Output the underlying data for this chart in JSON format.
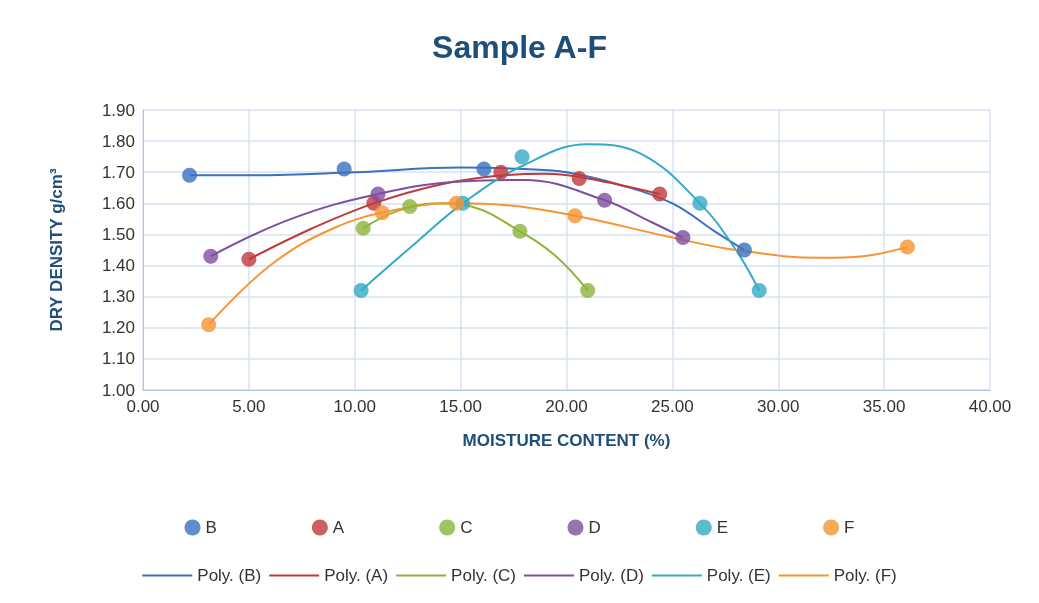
{
  "chart_data": {
    "type": "scatter",
    "title": "Sample A-F",
    "xlabel": "MOISTURE CONTENT (%)",
    "ylabel": "DRY DENSITY g/cm³",
    "marker": "circle",
    "grid": true,
    "legend": "bottom",
    "xlim": [
      0,
      40
    ],
    "xticks": [
      {
        "value": 0,
        "label": "0.00"
      },
      {
        "value": 5,
        "label": "5.00"
      },
      {
        "value": 10,
        "label": "10.00"
      },
      {
        "value": 15,
        "label": "15.00"
      },
      {
        "value": 20,
        "label": "20.00"
      },
      {
        "value": 25,
        "label": "25.00"
      },
      {
        "value": 30,
        "label": "30.00"
      },
      {
        "value": 35,
        "label": "35.00"
      },
      {
        "value": 40,
        "label": "40.00"
      }
    ],
    "ylim": [
      1,
      1.9
    ],
    "yticks": [
      {
        "value": 1,
        "label": "1.00"
      },
      {
        "value": 1.1,
        "label": "1.10"
      },
      {
        "value": 1.2,
        "label": "1.20"
      },
      {
        "value": 1.3,
        "label": "1.30"
      },
      {
        "value": 1.4,
        "label": "1.40"
      },
      {
        "value": 1.5,
        "label": "1.50"
      },
      {
        "value": 1.6,
        "label": "1.60"
      },
      {
        "value": 1.7,
        "label": "1.70"
      },
      {
        "value": 1.8,
        "label": "1.80"
      },
      {
        "value": 1.9,
        "label": "1.90"
      }
    ],
    "series": [
      {
        "name": "B",
        "color": "#3a70c0",
        "x": [
          2.2,
          9.5,
          16.1,
          28.4
        ],
        "values": [
          1.69,
          1.71,
          1.71,
          1.45
        ]
      },
      {
        "name": "A",
        "color": "#c0393b",
        "x": [
          5.0,
          10.9,
          16.9,
          20.6,
          24.4
        ],
        "values": [
          1.42,
          1.6,
          1.7,
          1.68,
          1.63
        ]
      },
      {
        "name": "C",
        "color": "#8cb43a",
        "x": [
          10.4,
          12.6,
          17.8,
          21.0
        ],
        "values": [
          1.52,
          1.59,
          1.51,
          1.32
        ]
      },
      {
        "name": "D",
        "color": "#7e4fa0",
        "x": [
          3.2,
          11.1,
          21.8,
          25.5
        ],
        "values": [
          1.43,
          1.63,
          1.61,
          1.49
        ]
      },
      {
        "name": "E",
        "color": "#35aac6",
        "x": [
          10.3,
          15.1,
          17.9,
          26.3,
          29.1
        ],
        "values": [
          1.32,
          1.6,
          1.75,
          1.6,
          1.32
        ]
      },
      {
        "name": "F",
        "color": "#f79431",
        "x": [
          3.1,
          11.3,
          14.8,
          20.4,
          36.1
        ],
        "values": [
          1.21,
          1.57,
          1.6,
          1.56,
          1.46
        ]
      },
      {
        "name": "Poly. (B)",
        "type": "line",
        "marker": "none",
        "color": "#3a70c0",
        "x": [
          2.2,
          5,
          10,
          15,
          18,
          20,
          22.5,
          25,
          27,
          28.4
        ],
        "values": [
          1.69,
          1.69,
          1.7,
          1.715,
          1.71,
          1.7,
          1.66,
          1.6,
          1.51,
          1.45
        ]
      },
      {
        "name": "Poly. (A)",
        "type": "line",
        "marker": "none",
        "color": "#c0393b",
        "x": [
          5,
          8,
          10.9,
          14,
          17,
          19,
          21,
          24.4
        ],
        "values": [
          1.42,
          1.52,
          1.6,
          1.66,
          1.69,
          1.695,
          1.68,
          1.63
        ]
      },
      {
        "name": "Poly. (C)",
        "type": "line",
        "marker": "none",
        "color": "#8cb43a",
        "x": [
          10.4,
          12,
          14,
          15.5,
          17.8,
          19.5,
          21
        ],
        "values": [
          1.52,
          1.575,
          1.6,
          1.59,
          1.51,
          1.43,
          1.32
        ]
      },
      {
        "name": "Poly. (D)",
        "type": "line",
        "marker": "none",
        "color": "#7e4fa0",
        "x": [
          3.2,
          7,
          11.1,
          15,
          18,
          21.8,
          24,
          25.5
        ],
        "values": [
          1.43,
          1.55,
          1.63,
          1.67,
          1.675,
          1.61,
          1.54,
          1.49
        ]
      },
      {
        "name": "Poly. (E)",
        "type": "line",
        "marker": "none",
        "color": "#35aac6",
        "x": [
          10.3,
          13,
          15.1,
          17.9,
          21,
          23.5,
          26.3,
          28,
          29.1
        ],
        "values": [
          1.32,
          1.48,
          1.6,
          1.72,
          1.79,
          1.76,
          1.6,
          1.45,
          1.32
        ]
      },
      {
        "name": "Poly. (F)",
        "type": "line",
        "marker": "none",
        "color": "#f79431",
        "x": [
          3.1,
          6,
          9,
          12,
          14.8,
          17,
          20.4,
          25,
          28,
          32,
          34,
          36.1
        ],
        "values": [
          1.21,
          1.4,
          1.52,
          1.58,
          1.6,
          1.595,
          1.56,
          1.49,
          1.45,
          1.425,
          1.43,
          1.46
        ]
      }
    ]
  }
}
